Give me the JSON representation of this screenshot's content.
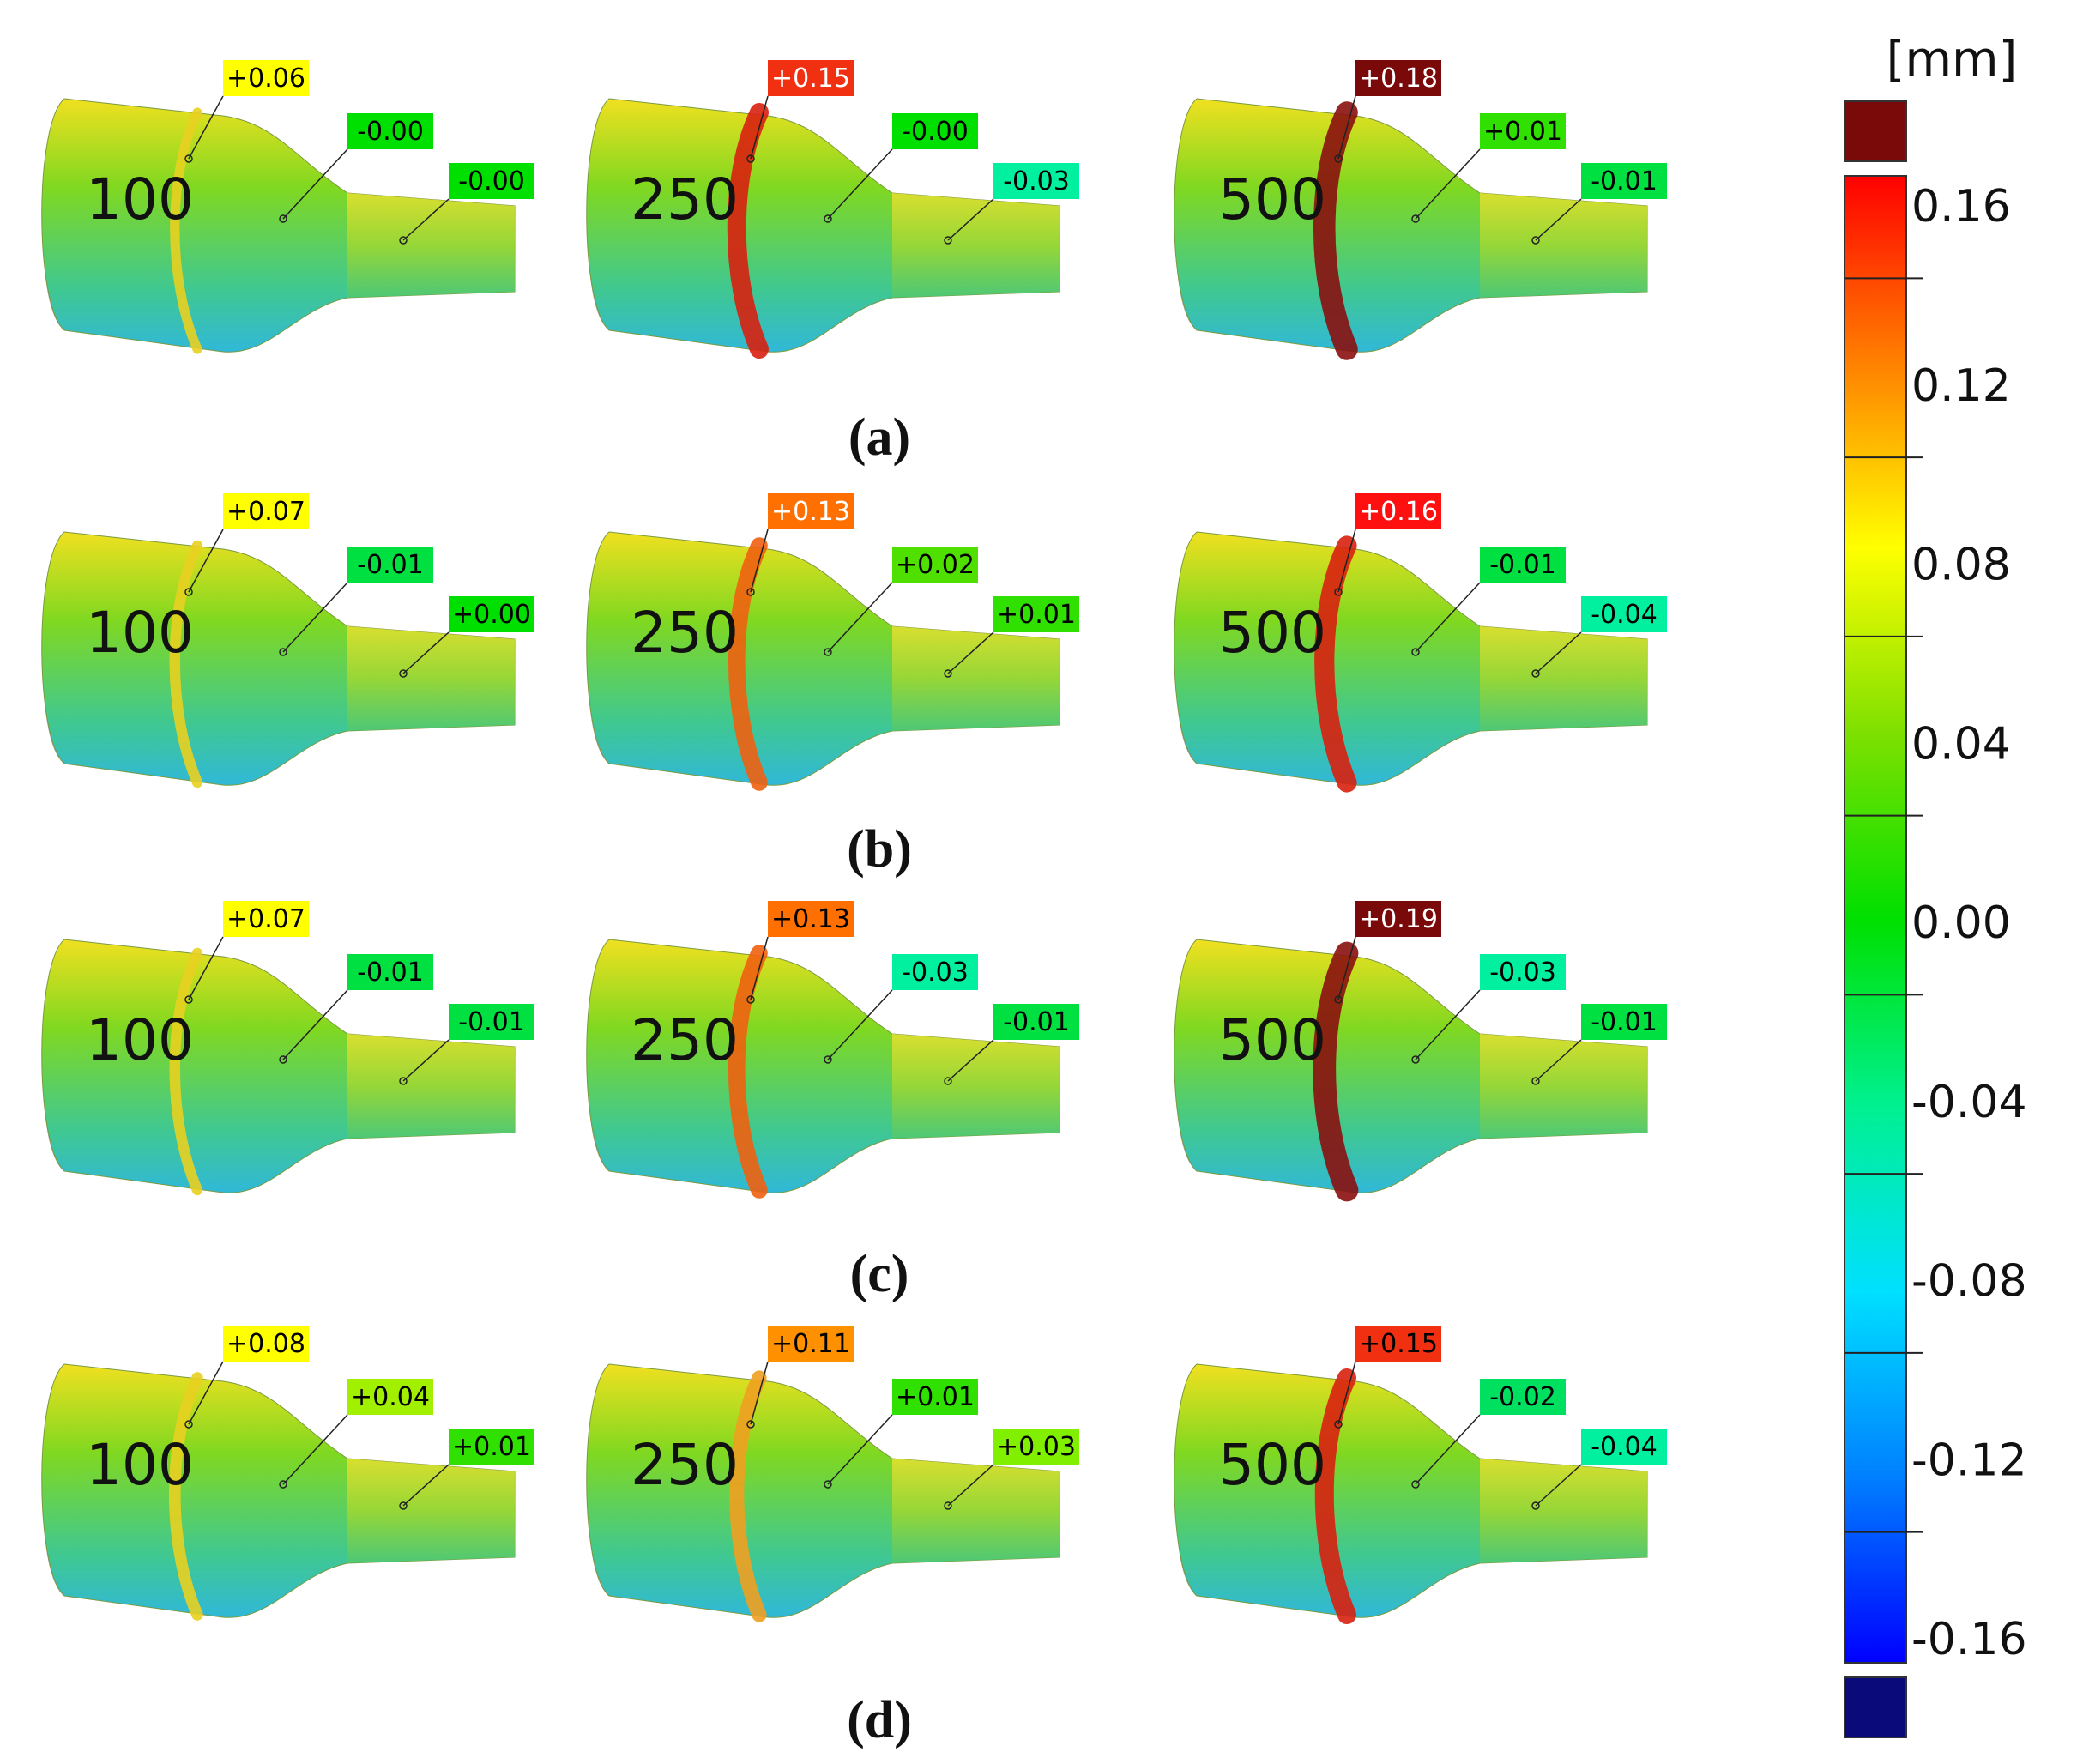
{
  "colorbar": {
    "unit": "[mm]",
    "ticks": [
      "0.16",
      "0.12",
      "0.08",
      "0.04",
      "0.00",
      "-0.04",
      "-0.08",
      "-0.12",
      "-0.16"
    ],
    "over_color": "#7a0a0a",
    "under_color": "#0a0a7a",
    "gradient_stops": [
      "#ff0000",
      "#ff8000",
      "#ffff00",
      "#7ee000",
      "#00e000",
      "#00f090",
      "#00e0ff",
      "#0080ff",
      "#0000ff"
    ]
  },
  "rows": [
    {
      "label": "(a)",
      "specimens": [
        {
          "load": "100",
          "annotations": [
            {
              "text": "+0.06",
              "color": "#ffff00",
              "text_color": "#000000"
            },
            {
              "text": "-0.00",
              "color": "#00e000",
              "text_color": "#000000"
            },
            {
              "text": "-0.00",
              "color": "#00e000",
              "text_color": "#000000"
            }
          ]
        },
        {
          "load": "250",
          "annotations": [
            {
              "text": "+0.15",
              "color": "#f03010",
              "text_color": "#ffffff"
            },
            {
              "text": "-0.00",
              "color": "#00e000",
              "text_color": "#000000"
            },
            {
              "text": "-0.03",
              "color": "#00f0a0",
              "text_color": "#000000"
            }
          ]
        },
        {
          "load": "500",
          "annotations": [
            {
              "text": "+0.18",
              "color": "#7a0a0a",
              "text_color": "#ffffff"
            },
            {
              "text": "+0.01",
              "color": "#30e000",
              "text_color": "#000000"
            },
            {
              "text": "-0.01",
              "color": "#00e040",
              "text_color": "#000000"
            }
          ]
        }
      ]
    },
    {
      "label": "(b)",
      "specimens": [
        {
          "load": "100",
          "annotations": [
            {
              "text": "+0.07",
              "color": "#ffff00",
              "text_color": "#000000"
            },
            {
              "text": "-0.01",
              "color": "#00e040",
              "text_color": "#000000"
            },
            {
              "text": "+0.00",
              "color": "#00e000",
              "text_color": "#000000"
            }
          ]
        },
        {
          "load": "250",
          "annotations": [
            {
              "text": "+0.13",
              "color": "#ff7000",
              "text_color": "#ffffff"
            },
            {
              "text": "+0.02",
              "color": "#50e000",
              "text_color": "#000000"
            },
            {
              "text": "+0.01",
              "color": "#30e000",
              "text_color": "#000000"
            }
          ]
        },
        {
          "load": "500",
          "annotations": [
            {
              "text": "+0.16",
              "color": "#ff1010",
              "text_color": "#ffffff"
            },
            {
              "text": "-0.01",
              "color": "#00e040",
              "text_color": "#000000"
            },
            {
              "text": "-0.04",
              "color": "#00f0a0",
              "text_color": "#000000"
            }
          ]
        }
      ]
    },
    {
      "label": "(c)",
      "specimens": [
        {
          "load": "100",
          "annotations": [
            {
              "text": "+0.07",
              "color": "#ffff00",
              "text_color": "#000000"
            },
            {
              "text": "-0.01",
              "color": "#00e040",
              "text_color": "#000000"
            },
            {
              "text": "-0.01",
              "color": "#00e040",
              "text_color": "#000000"
            }
          ]
        },
        {
          "load": "250",
          "annotations": [
            {
              "text": "+0.13",
              "color": "#ff7000",
              "text_color": "#000000"
            },
            {
              "text": "-0.03",
              "color": "#00f0a0",
              "text_color": "#000000"
            },
            {
              "text": "-0.01",
              "color": "#00e040",
              "text_color": "#000000"
            }
          ]
        },
        {
          "load": "500",
          "annotations": [
            {
              "text": "+0.19",
              "color": "#7a0a0a",
              "text_color": "#ffffff"
            },
            {
              "text": "-0.03",
              "color": "#00f0a0",
              "text_color": "#000000"
            },
            {
              "text": "-0.01",
              "color": "#00e040",
              "text_color": "#000000"
            }
          ]
        }
      ]
    },
    {
      "label": "(d)",
      "specimens": [
        {
          "load": "100",
          "annotations": [
            {
              "text": "+0.08",
              "color": "#ffff00",
              "text_color": "#000000"
            },
            {
              "text": "+0.04",
              "color": "#a0f000",
              "text_color": "#000000"
            },
            {
              "text": "+0.01",
              "color": "#30e000",
              "text_color": "#000000"
            }
          ]
        },
        {
          "load": "250",
          "annotations": [
            {
              "text": "+0.11",
              "color": "#ff9000",
              "text_color": "#000000"
            },
            {
              "text": "+0.01",
              "color": "#30e000",
              "text_color": "#000000"
            },
            {
              "text": "+0.03",
              "color": "#80f000",
              "text_color": "#000000"
            }
          ]
        },
        {
          "load": "500",
          "annotations": [
            {
              "text": "+0.15",
              "color": "#f03010",
              "text_color": "#000000"
            },
            {
              "text": "-0.02",
              "color": "#00e060",
              "text_color": "#000000"
            },
            {
              "text": "-0.04",
              "color": "#00f0a0",
              "text_color": "#000000"
            }
          ]
        }
      ]
    }
  ]
}
